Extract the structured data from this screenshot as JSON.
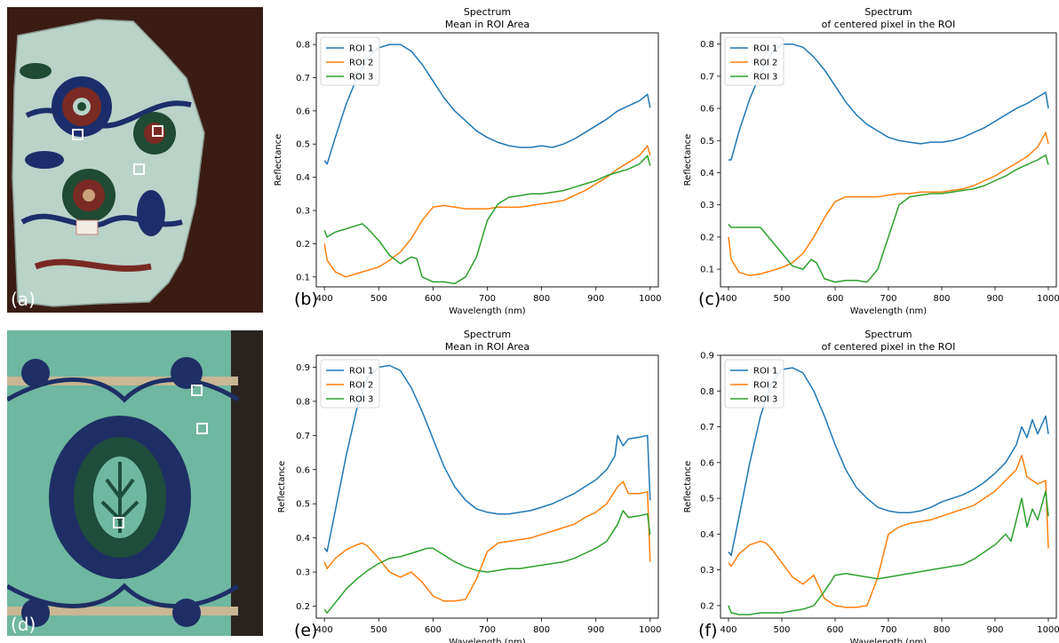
{
  "photos": [
    {
      "label": "(a)",
      "roi_markers": [
        {
          "name": "roi-1"
        },
        {
          "name": "roi-2"
        },
        {
          "name": "roi-3"
        }
      ],
      "colors": {
        "background": "#3a1c14",
        "tile": "#b9d3c9",
        "motif_blue": "#1b2e6b",
        "motif_red": "#7a2a24",
        "motif_green": "#1f4a33"
      }
    },
    {
      "label": "(d)",
      "roi_markers": [
        {
          "name": "roi-1"
        },
        {
          "name": "roi-2"
        },
        {
          "name": "roi-3"
        }
      ],
      "colors": {
        "tile": "#6fb7a0",
        "motif_blue": "#1e2f66",
        "motif_green": "#1e4d3c",
        "grout": "#c9b793"
      }
    }
  ],
  "chart_data": [
    {
      "panel": "(b)",
      "type": "line",
      "title": "Spectrum",
      "subtitle": "Mean in ROI Area",
      "xlabel": "Wavelength (nm)",
      "ylabel": "Reflectance",
      "xlim": [
        385,
        1015
      ],
      "ylim": [
        0.07,
        0.835
      ],
      "xticks": [
        400,
        500,
        600,
        700,
        800,
        900,
        1000
      ],
      "yticks": [
        0.1,
        0.2,
        0.3,
        0.4,
        0.5,
        0.6,
        0.7,
        0.8
      ],
      "legend": "top-left",
      "grid": false,
      "series": [
        {
          "name": "ROI 1",
          "color": "#1f77b4",
          "x": [
            400,
            405,
            420,
            440,
            460,
            480,
            500,
            520,
            540,
            560,
            580,
            600,
            620,
            640,
            660,
            680,
            700,
            720,
            740,
            760,
            780,
            800,
            820,
            840,
            860,
            880,
            900,
            920,
            940,
            960,
            980,
            995,
            1000
          ],
          "y": [
            0.45,
            0.44,
            0.52,
            0.62,
            0.7,
            0.76,
            0.79,
            0.8,
            0.8,
            0.78,
            0.74,
            0.69,
            0.64,
            0.6,
            0.57,
            0.54,
            0.52,
            0.505,
            0.495,
            0.49,
            0.49,
            0.495,
            0.49,
            0.5,
            0.515,
            0.535,
            0.555,
            0.575,
            0.6,
            0.615,
            0.63,
            0.65,
            0.61
          ]
        },
        {
          "name": "ROI 2",
          "color": "#ff7f0e",
          "x": [
            400,
            405,
            420,
            440,
            460,
            480,
            500,
            520,
            540,
            560,
            580,
            600,
            620,
            640,
            660,
            680,
            700,
            720,
            740,
            760,
            780,
            800,
            820,
            840,
            860,
            880,
            900,
            920,
            940,
            960,
            980,
            995,
            1000
          ],
          "y": [
            0.2,
            0.15,
            0.115,
            0.1,
            0.11,
            0.12,
            0.13,
            0.15,
            0.175,
            0.215,
            0.27,
            0.31,
            0.315,
            0.31,
            0.305,
            0.305,
            0.305,
            0.31,
            0.31,
            0.31,
            0.315,
            0.32,
            0.325,
            0.33,
            0.345,
            0.36,
            0.38,
            0.4,
            0.425,
            0.445,
            0.465,
            0.495,
            0.465
          ]
        },
        {
          "name": "ROI 3",
          "color": "#2ca02c",
          "x": [
            400,
            405,
            420,
            440,
            460,
            470,
            480,
            500,
            520,
            540,
            560,
            570,
            580,
            600,
            620,
            640,
            660,
            680,
            700,
            720,
            740,
            760,
            780,
            800,
            820,
            840,
            860,
            880,
            900,
            920,
            940,
            960,
            980,
            995,
            1000
          ],
          "y": [
            0.24,
            0.22,
            0.235,
            0.245,
            0.255,
            0.26,
            0.245,
            0.21,
            0.165,
            0.14,
            0.16,
            0.155,
            0.1,
            0.085,
            0.085,
            0.08,
            0.1,
            0.16,
            0.27,
            0.32,
            0.34,
            0.345,
            0.35,
            0.35,
            0.355,
            0.36,
            0.37,
            0.38,
            0.39,
            0.405,
            0.415,
            0.425,
            0.44,
            0.465,
            0.435
          ]
        }
      ]
    },
    {
      "panel": "(c)",
      "type": "line",
      "title": "Spectrum",
      "subtitle": "of centered pixel in the ROI",
      "xlabel": "Wavelength (nm)",
      "ylabel": "Reflectance",
      "xlim": [
        385,
        1015
      ],
      "ylim": [
        0.045,
        0.835
      ],
      "xticks": [
        400,
        500,
        600,
        700,
        800,
        900,
        1000
      ],
      "yticks": [
        0.1,
        0.2,
        0.3,
        0.4,
        0.5,
        0.6,
        0.7,
        0.8
      ],
      "legend": "top-left",
      "grid": false,
      "series": [
        {
          "name": "ROI 1",
          "color": "#1f77b4",
          "x": [
            400,
            405,
            420,
            440,
            460,
            480,
            500,
            520,
            540,
            560,
            580,
            600,
            620,
            640,
            660,
            680,
            700,
            720,
            740,
            760,
            780,
            800,
            820,
            840,
            860,
            880,
            900,
            920,
            940,
            960,
            980,
            995,
            1000
          ],
          "y": [
            0.44,
            0.44,
            0.53,
            0.63,
            0.71,
            0.77,
            0.8,
            0.8,
            0.79,
            0.76,
            0.72,
            0.67,
            0.62,
            0.58,
            0.55,
            0.53,
            0.51,
            0.5,
            0.495,
            0.49,
            0.495,
            0.495,
            0.5,
            0.51,
            0.525,
            0.54,
            0.56,
            0.58,
            0.6,
            0.615,
            0.635,
            0.65,
            0.6
          ]
        },
        {
          "name": "ROI 2",
          "color": "#ff7f0e",
          "x": [
            400,
            405,
            420,
            440,
            460,
            480,
            500,
            520,
            540,
            560,
            580,
            600,
            620,
            640,
            660,
            680,
            700,
            720,
            740,
            760,
            780,
            800,
            820,
            840,
            860,
            880,
            900,
            920,
            940,
            960,
            980,
            995,
            1000
          ],
          "y": [
            0.2,
            0.13,
            0.09,
            0.08,
            0.085,
            0.095,
            0.105,
            0.12,
            0.15,
            0.2,
            0.26,
            0.31,
            0.325,
            0.325,
            0.325,
            0.325,
            0.33,
            0.335,
            0.335,
            0.34,
            0.34,
            0.34,
            0.345,
            0.35,
            0.36,
            0.375,
            0.39,
            0.41,
            0.43,
            0.45,
            0.48,
            0.525,
            0.49
          ]
        },
        {
          "name": "ROI 3",
          "color": "#2ca02c",
          "x": [
            400,
            405,
            420,
            440,
            460,
            480,
            500,
            520,
            540,
            555,
            565,
            580,
            600,
            620,
            640,
            660,
            680,
            700,
            720,
            740,
            760,
            780,
            800,
            820,
            840,
            860,
            880,
            900,
            920,
            940,
            960,
            980,
            995,
            1000
          ],
          "y": [
            0.24,
            0.23,
            0.23,
            0.23,
            0.23,
            0.19,
            0.15,
            0.11,
            0.1,
            0.13,
            0.12,
            0.07,
            0.06,
            0.065,
            0.065,
            0.06,
            0.1,
            0.2,
            0.3,
            0.325,
            0.33,
            0.335,
            0.335,
            0.34,
            0.345,
            0.35,
            0.36,
            0.375,
            0.39,
            0.41,
            0.425,
            0.44,
            0.455,
            0.425
          ]
        }
      ]
    },
    {
      "panel": "(e)",
      "type": "line",
      "title": "Spectrum",
      "subtitle": "Mean in ROI Area",
      "xlabel": "Wavelength (nm)",
      "ylabel": "Reflectance",
      "xlim": [
        385,
        1015
      ],
      "ylim": [
        0.165,
        0.935
      ],
      "xticks": [
        400,
        500,
        600,
        700,
        800,
        900,
        1000
      ],
      "yticks": [
        0.2,
        0.3,
        0.4,
        0.5,
        0.6,
        0.7,
        0.8,
        0.9
      ],
      "legend": "top-left",
      "grid": false,
      "series": [
        {
          "name": "ROI 1",
          "color": "#1f77b4",
          "x": [
            400,
            405,
            420,
            440,
            460,
            480,
            500,
            520,
            540,
            560,
            580,
            600,
            620,
            640,
            660,
            680,
            700,
            720,
            740,
            760,
            780,
            800,
            820,
            840,
            860,
            880,
            900,
            920,
            935,
            940,
            950,
            960,
            980,
            995,
            1000
          ],
          "y": [
            0.37,
            0.36,
            0.48,
            0.64,
            0.78,
            0.87,
            0.9,
            0.905,
            0.89,
            0.84,
            0.77,
            0.69,
            0.61,
            0.55,
            0.51,
            0.485,
            0.475,
            0.47,
            0.47,
            0.475,
            0.48,
            0.49,
            0.5,
            0.515,
            0.53,
            0.55,
            0.57,
            0.6,
            0.64,
            0.7,
            0.67,
            0.69,
            0.695,
            0.7,
            0.51
          ]
        },
        {
          "name": "ROI 2",
          "color": "#ff7f0e",
          "x": [
            400,
            405,
            420,
            440,
            460,
            470,
            480,
            500,
            520,
            540,
            560,
            580,
            600,
            620,
            640,
            660,
            680,
            700,
            720,
            740,
            760,
            780,
            800,
            820,
            840,
            860,
            880,
            900,
            920,
            940,
            950,
            960,
            980,
            995,
            1000
          ],
          "y": [
            0.33,
            0.31,
            0.34,
            0.365,
            0.38,
            0.385,
            0.375,
            0.34,
            0.3,
            0.285,
            0.3,
            0.27,
            0.23,
            0.215,
            0.215,
            0.22,
            0.28,
            0.36,
            0.385,
            0.39,
            0.395,
            0.4,
            0.41,
            0.42,
            0.43,
            0.44,
            0.46,
            0.475,
            0.5,
            0.55,
            0.565,
            0.53,
            0.53,
            0.535,
            0.33
          ]
        },
        {
          "name": "ROI 3",
          "color": "#2ca02c",
          "x": [
            400,
            405,
            420,
            440,
            460,
            480,
            500,
            520,
            540,
            560,
            580,
            590,
            600,
            620,
            640,
            660,
            680,
            700,
            720,
            740,
            760,
            780,
            800,
            820,
            840,
            860,
            880,
            900,
            920,
            940,
            950,
            960,
            980,
            995,
            1000
          ],
          "y": [
            0.19,
            0.18,
            0.21,
            0.25,
            0.28,
            0.305,
            0.325,
            0.34,
            0.345,
            0.355,
            0.365,
            0.37,
            0.37,
            0.35,
            0.33,
            0.315,
            0.305,
            0.3,
            0.305,
            0.31,
            0.31,
            0.315,
            0.32,
            0.325,
            0.33,
            0.34,
            0.355,
            0.37,
            0.39,
            0.44,
            0.48,
            0.46,
            0.465,
            0.47,
            0.41
          ]
        }
      ]
    },
    {
      "panel": "(f)",
      "type": "line",
      "title": "Spectrum",
      "subtitle": "of centered pixel in the ROI",
      "xlabel": "Wavelength (nm)",
      "ylabel": "Reflectance",
      "xlim": [
        385,
        1015
      ],
      "ylim": [
        0.165,
        0.9
      ],
      "xticks": [
        400,
        500,
        600,
        700,
        800,
        900,
        1000
      ],
      "yticks": [
        0.2,
        0.3,
        0.4,
        0.5,
        0.6,
        0.7,
        0.8,
        0.9
      ],
      "legend": "top-left",
      "grid": false,
      "series": [
        {
          "name": "ROI 1",
          "color": "#1f77b4",
          "x": [
            400,
            405,
            420,
            440,
            460,
            480,
            500,
            520,
            540,
            560,
            580,
            600,
            620,
            640,
            660,
            680,
            700,
            720,
            740,
            760,
            780,
            800,
            820,
            840,
            860,
            880,
            900,
            920,
            940,
            950,
            960,
            970,
            980,
            995,
            1000
          ],
          "y": [
            0.35,
            0.34,
            0.45,
            0.6,
            0.73,
            0.82,
            0.86,
            0.865,
            0.85,
            0.8,
            0.73,
            0.65,
            0.58,
            0.53,
            0.5,
            0.475,
            0.465,
            0.46,
            0.46,
            0.465,
            0.475,
            0.49,
            0.5,
            0.51,
            0.525,
            0.545,
            0.57,
            0.6,
            0.65,
            0.7,
            0.67,
            0.72,
            0.68,
            0.73,
            0.68
          ]
        },
        {
          "name": "ROI 2",
          "color": "#ff7f0e",
          "x": [
            400,
            405,
            420,
            440,
            460,
            470,
            480,
            500,
            520,
            540,
            560,
            580,
            600,
            620,
            640,
            660,
            680,
            700,
            720,
            740,
            760,
            780,
            800,
            820,
            840,
            860,
            880,
            900,
            920,
            940,
            950,
            960,
            980,
            995,
            1000
          ],
          "y": [
            0.32,
            0.31,
            0.345,
            0.37,
            0.38,
            0.375,
            0.36,
            0.32,
            0.28,
            0.26,
            0.285,
            0.22,
            0.2,
            0.195,
            0.195,
            0.2,
            0.28,
            0.4,
            0.42,
            0.43,
            0.435,
            0.44,
            0.45,
            0.46,
            0.47,
            0.48,
            0.5,
            0.52,
            0.55,
            0.58,
            0.62,
            0.56,
            0.54,
            0.55,
            0.36
          ]
        },
        {
          "name": "ROI 3",
          "color": "#2ca02c",
          "x": [
            400,
            405,
            420,
            440,
            460,
            480,
            500,
            520,
            540,
            560,
            580,
            600,
            620,
            640,
            660,
            680,
            700,
            720,
            740,
            760,
            780,
            800,
            820,
            840,
            860,
            880,
            900,
            920,
            930,
            940,
            950,
            960,
            970,
            980,
            995,
            1000
          ],
          "y": [
            0.2,
            0.18,
            0.175,
            0.175,
            0.18,
            0.18,
            0.18,
            0.185,
            0.19,
            0.2,
            0.24,
            0.285,
            0.29,
            0.285,
            0.28,
            0.275,
            0.28,
            0.285,
            0.29,
            0.295,
            0.3,
            0.305,
            0.31,
            0.315,
            0.33,
            0.35,
            0.37,
            0.4,
            0.38,
            0.44,
            0.5,
            0.42,
            0.47,
            0.44,
            0.52,
            0.45
          ]
        }
      ]
    }
  ]
}
